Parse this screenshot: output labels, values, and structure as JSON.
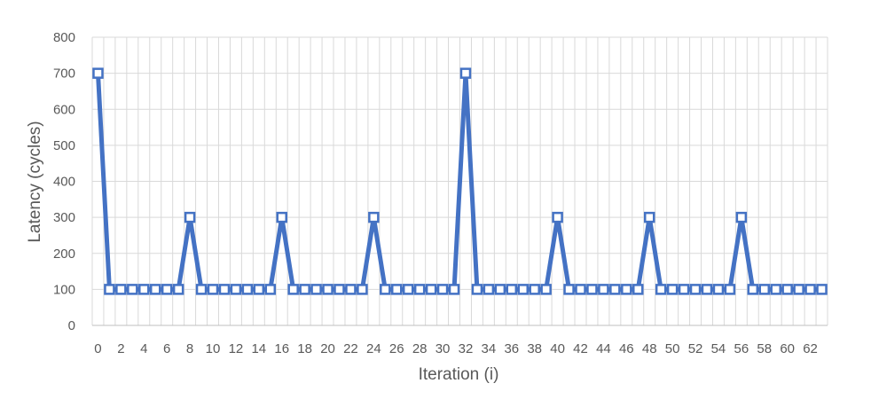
{
  "chart_data": {
    "type": "line",
    "title": "",
    "xlabel": "Iteration (i)",
    "ylabel": "Latency (cycles)",
    "ylim": [
      0,
      800
    ],
    "yticks": [
      0,
      100,
      200,
      300,
      400,
      500,
      600,
      700,
      800
    ],
    "xlim": [
      0,
      63
    ],
    "xtick_labels": [
      0,
      2,
      4,
      6,
      8,
      10,
      12,
      14,
      16,
      18,
      20,
      22,
      24,
      26,
      28,
      30,
      32,
      34,
      36,
      38,
      40,
      42,
      44,
      46,
      48,
      50,
      52,
      54,
      56,
      58,
      60,
      62
    ],
    "grid": true,
    "legend": "none",
    "line_color": "#4472C4",
    "series": [
      {
        "x": [
          0,
          1,
          2,
          3,
          4,
          5,
          6,
          7,
          8,
          9,
          10,
          11,
          12,
          13,
          14,
          15,
          16,
          17,
          18,
          19,
          20,
          21,
          22,
          23,
          24,
          25,
          26,
          27,
          28,
          29,
          30,
          31,
          32,
          33,
          34,
          35,
          36,
          37,
          38,
          39,
          40,
          41,
          42,
          43,
          44,
          45,
          46,
          47,
          48,
          49,
          50,
          51,
          52,
          53,
          54,
          55,
          56,
          57,
          58,
          59,
          60,
          61,
          62,
          63
        ],
        "values": [
          700,
          100,
          100,
          100,
          100,
          100,
          100,
          100,
          300,
          100,
          100,
          100,
          100,
          100,
          100,
          100,
          300,
          100,
          100,
          100,
          100,
          100,
          100,
          100,
          300,
          100,
          100,
          100,
          100,
          100,
          100,
          100,
          700,
          100,
          100,
          100,
          100,
          100,
          100,
          100,
          300,
          100,
          100,
          100,
          100,
          100,
          100,
          100,
          300,
          100,
          100,
          100,
          100,
          100,
          100,
          100,
          300,
          100,
          100,
          100,
          100,
          100,
          100,
          100
        ]
      }
    ]
  }
}
